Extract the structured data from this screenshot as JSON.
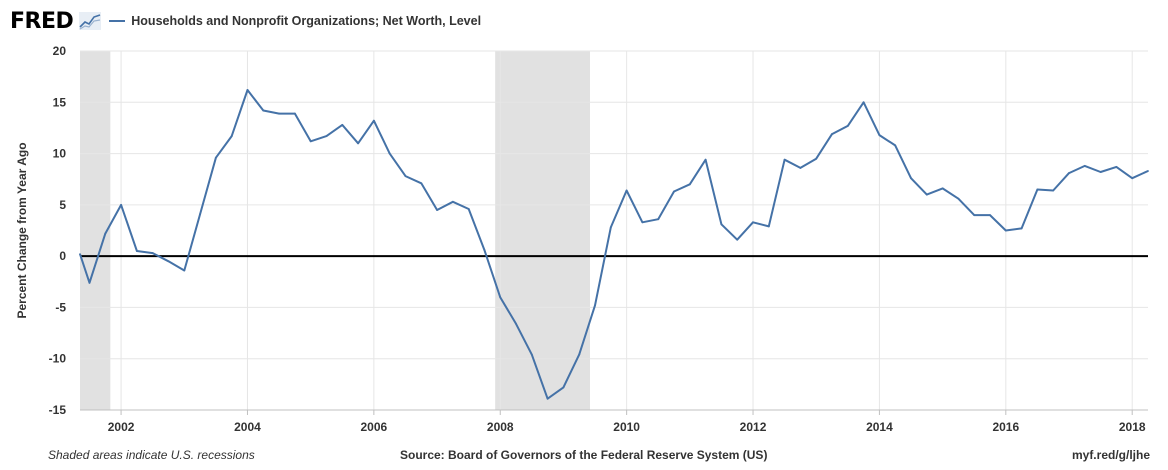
{
  "header": {
    "logo": "FRED",
    "legend": [
      {
        "label": "Households and Nonprofit Organizations; Net Worth, Level",
        "color": "#4572a7"
      }
    ]
  },
  "footer": {
    "note": "Shaded areas indicate U.S. recessions",
    "source": "Source: Board of Governors of the Federal Reserve System (US)",
    "url": "myf.red/g/ljhe"
  },
  "chart_data": {
    "type": "line",
    "title": "",
    "xlabel": "",
    "ylabel": "Percent Change from Year Ago",
    "xlim": [
      2001.35,
      2018.25
    ],
    "ylim": [
      -15,
      20
    ],
    "yticks": [
      20,
      15,
      10,
      5,
      0,
      -5,
      -10,
      -15
    ],
    "xticks": [
      2002,
      2004,
      2006,
      2008,
      2010,
      2012,
      2014,
      2016,
      2018
    ],
    "grid": true,
    "zero_line": true,
    "recessions": [
      [
        2001.35,
        2001.83
      ],
      [
        2007.92,
        2009.42
      ]
    ],
    "series": [
      {
        "name": "Households and Nonprofit Organizations; Net Worth, Level",
        "color": "#4572a7",
        "x": [
          2001.35,
          2001.5,
          2001.75,
          2002.0,
          2002.25,
          2002.5,
          2002.75,
          2003.0,
          2003.25,
          2003.5,
          2003.75,
          2004.0,
          2004.25,
          2004.5,
          2004.75,
          2005.0,
          2005.25,
          2005.5,
          2005.75,
          2006.0,
          2006.25,
          2006.5,
          2006.75,
          2007.0,
          2007.25,
          2007.5,
          2007.75,
          2008.0,
          2008.25,
          2008.5,
          2008.75,
          2009.0,
          2009.25,
          2009.5,
          2009.75,
          2010.0,
          2010.25,
          2010.5,
          2010.75,
          2011.0,
          2011.25,
          2011.5,
          2011.75,
          2012.0,
          2012.25,
          2012.5,
          2012.75,
          2013.0,
          2013.25,
          2013.5,
          2013.75,
          2014.0,
          2014.25,
          2014.5,
          2014.75,
          2015.0,
          2015.25,
          2015.5,
          2015.75,
          2016.0,
          2016.25,
          2016.5,
          2016.75,
          2017.0,
          2017.25,
          2017.5,
          2017.75,
          2018.0,
          2018.25
        ],
        "y": [
          0.2,
          -2.6,
          2.2,
          5.0,
          0.5,
          0.3,
          -0.5,
          -1.4,
          4.1,
          9.6,
          11.7,
          16.2,
          14.2,
          13.9,
          13.9,
          11.2,
          11.7,
          12.8,
          11.0,
          13.2,
          10.0,
          7.8,
          7.1,
          4.5,
          5.3,
          4.6,
          0.6,
          -4.0,
          -6.6,
          -9.6,
          -13.9,
          -12.8,
          -9.6,
          -4.8,
          2.8,
          6.4,
          3.3,
          3.6,
          6.3,
          7.0,
          9.4,
          3.1,
          1.6,
          3.3,
          2.9,
          9.4,
          8.6,
          9.5,
          11.9,
          12.7,
          15.0,
          11.8,
          10.8,
          7.6,
          6.0,
          6.6,
          5.6,
          4.0,
          4.0,
          2.5,
          2.7,
          6.5,
          6.4,
          8.1,
          8.8,
          8.2,
          8.7,
          7.6,
          8.3
        ]
      }
    ]
  }
}
